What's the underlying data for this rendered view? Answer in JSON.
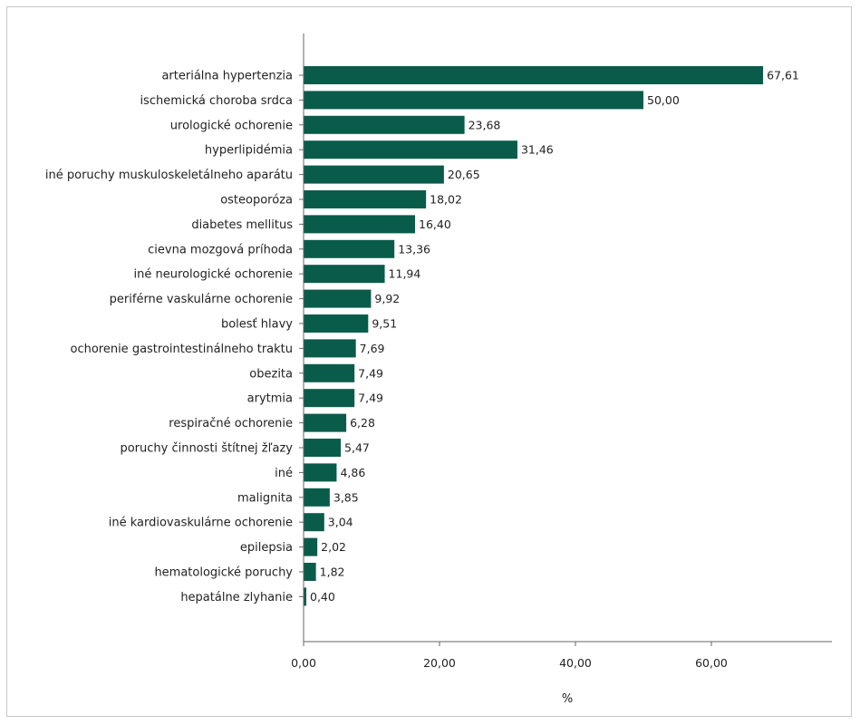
{
  "chart_data": {
    "type": "bar",
    "orientation": "horizontal",
    "bar_color": "#0a5c4a",
    "axis_color": "#666666",
    "categories": [
      "arteriálna hypertenzia",
      "ischemická choroba srdca",
      "urologické ochorenie",
      "hyperlipidémia",
      "iné poruchy muskuloskeletálneho aparátu",
      "osteoporóza",
      "diabetes mellitus",
      "cievna mozgová príhoda",
      "iné neurologické ochorenie",
      "periférne vaskulárne ochorenie",
      "bolesť hlavy",
      "ochorenie gastrointestinálneho traktu",
      "obezita",
      "arytmia",
      "respiračné ochorenie",
      "poruchy činnosti štítnej žľazy",
      "iné",
      "malignita",
      "iné kardiovaskulárne ochorenie",
      "epilepsia",
      "hematologické poruchy",
      "hepatálne zlyhanie"
    ],
    "values": [
      67.61,
      50.0,
      23.68,
      31.46,
      20.65,
      18.02,
      16.4,
      13.36,
      11.94,
      9.92,
      9.51,
      7.69,
      7.49,
      7.49,
      6.28,
      5.47,
      4.86,
      3.85,
      3.04,
      2.02,
      1.82,
      0.4
    ],
    "value_labels": [
      "67,61",
      "50,00",
      "23,68",
      "31,46",
      "20,65",
      "18,02",
      "16,40",
      "13,36",
      "11,94",
      "9,92",
      "9,51",
      "7,69",
      "7,49",
      "7,49",
      "6,28",
      "5,47",
      "4,86",
      "3,85",
      "3,04",
      "2,02",
      "1,82",
      "0,40"
    ],
    "xlim": [
      0,
      77.5
    ],
    "xticks": [
      0,
      20,
      40,
      60
    ],
    "xtick_labels": [
      "0,00",
      "20,00",
      "40,00",
      "60,00"
    ],
    "xlabel": "%",
    "ylabel": "",
    "title": "",
    "grid": false,
    "legend": "none"
  }
}
